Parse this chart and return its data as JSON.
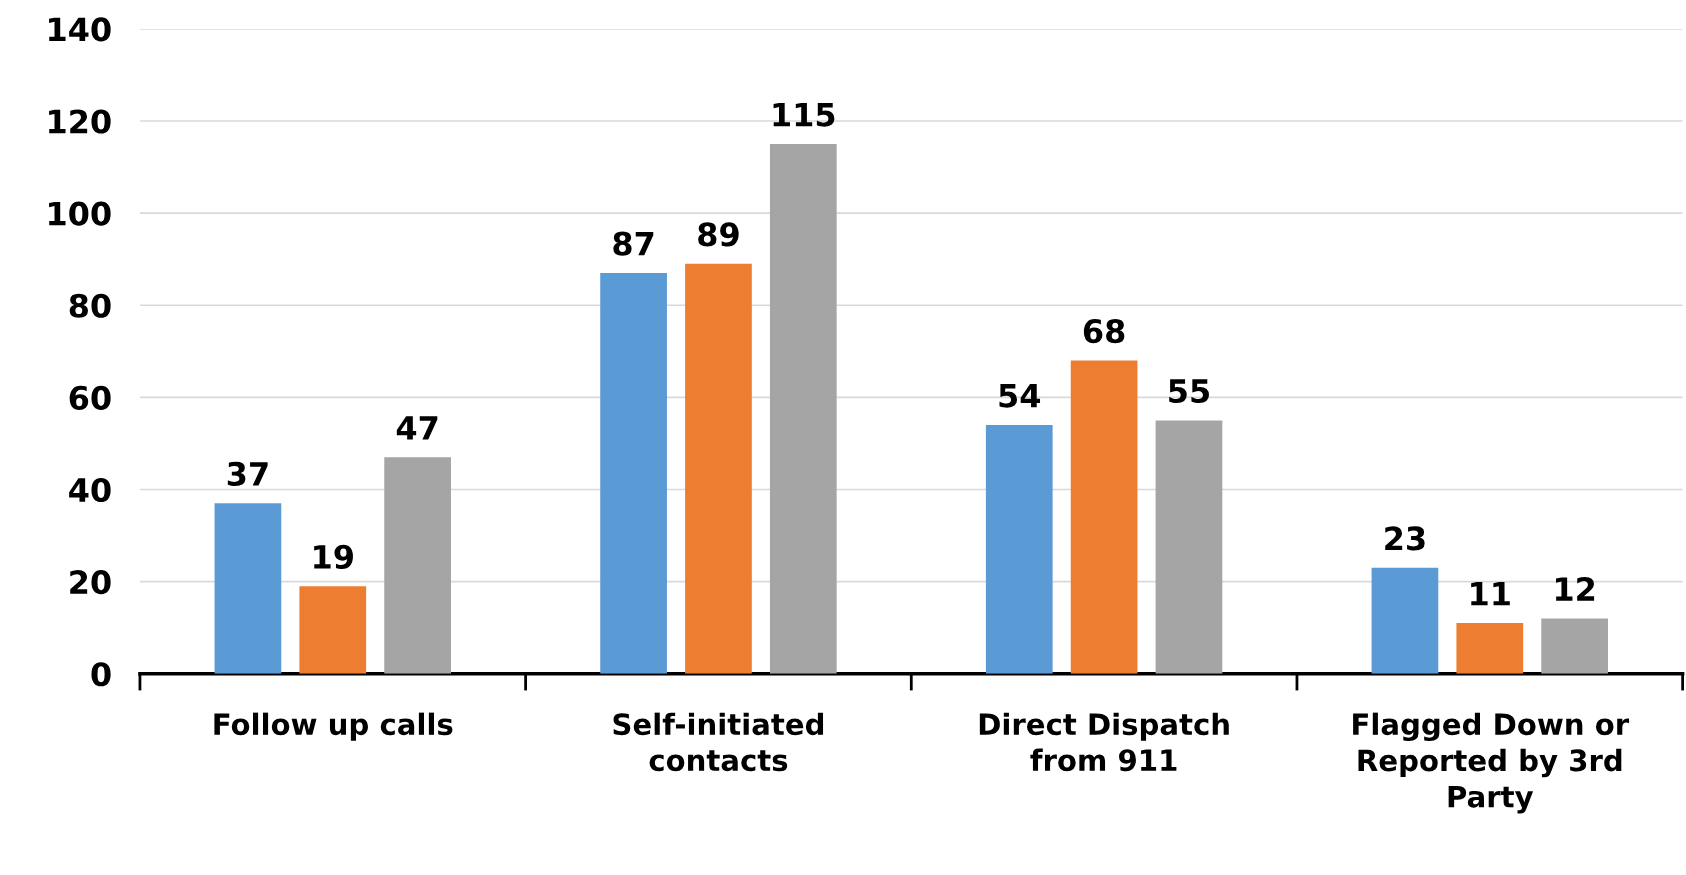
{
  "chart_data": {
    "type": "bar",
    "categories": [
      "Follow up calls",
      "Self-initiated\ncontacts",
      "Direct Dispatch\nfrom 911",
      "Flagged Down or\nReported by 3rd\nParty"
    ],
    "series": [
      {
        "color": "#5b9bd5",
        "values": [
          37,
          87,
          54,
          23
        ]
      },
      {
        "color": "#ed7d31",
        "values": [
          19,
          89,
          68,
          11
        ]
      },
      {
        "color": "#a5a5a5",
        "values": [
          47,
          115,
          55,
          12
        ]
      }
    ],
    "ylim": [
      0,
      140
    ],
    "yticks": [
      0,
      20,
      40,
      60,
      80,
      100,
      120,
      140
    ],
    "grid": "y",
    "data_labels": true
  }
}
